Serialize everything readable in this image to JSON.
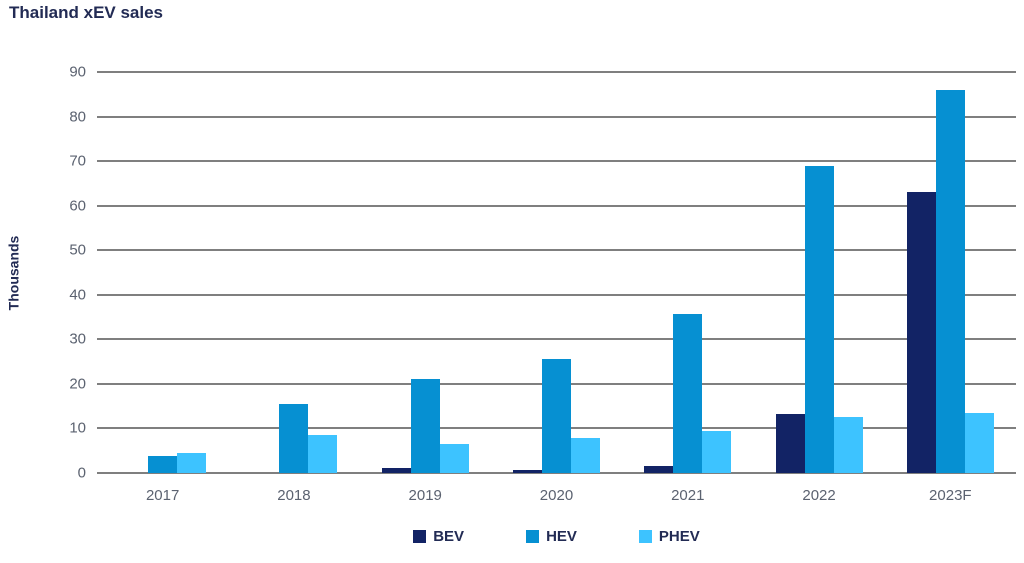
{
  "chart_data": {
    "type": "bar",
    "title": "Thailand xEV sales",
    "ylabel": "Thousands",
    "xlabel": "",
    "ylim": [
      0,
      90
    ],
    "yticks": [
      0,
      10,
      20,
      30,
      40,
      50,
      60,
      70,
      80,
      90
    ],
    "grid": true,
    "legend_position": "bottom",
    "categories": [
      "2017",
      "2018",
      "2019",
      "2020",
      "2021",
      "2022",
      "2023F"
    ],
    "series": [
      {
        "name": "BEV",
        "color": "#122365",
        "values": [
          0,
          0,
          1.2,
          0.7,
          1.6,
          13.3,
          63
        ]
      },
      {
        "name": "HEV",
        "color": "#0690D2",
        "values": [
          3.8,
          15.5,
          21,
          25.7,
          35.6,
          69,
          86
        ]
      },
      {
        "name": "PHEV",
        "color": "#3DC3FF",
        "values": [
          4.5,
          8.5,
          6.6,
          7.9,
          9.4,
          12.6,
          13.4
        ]
      }
    ]
  },
  "colors": {
    "title_text": "#222B54",
    "axis_text": "#5B6270",
    "gridline": "#7F7F7F",
    "background": "#FFFFFF"
  }
}
